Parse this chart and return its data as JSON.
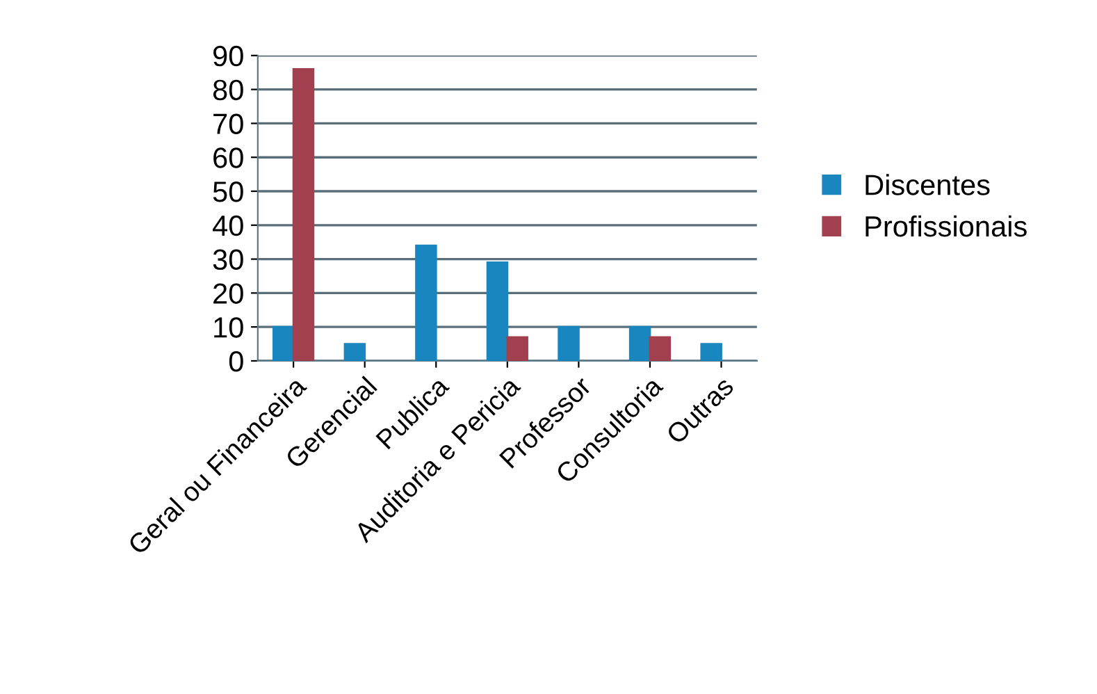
{
  "chart_data": {
    "type": "bar",
    "categories": [
      "Geral ou Financeira",
      "Gerencial",
      "Publica",
      "Auditoria e Pericia",
      "Professor",
      "Consultoria",
      "Outras"
    ],
    "series": [
      {
        "name": "Discentes",
        "color": "#1a86bf",
        "values": [
          10,
          5,
          34,
          29,
          10,
          10,
          5
        ]
      },
      {
        "name": "Profissionais",
        "color": "#a3404f",
        "values": [
          86,
          null,
          null,
          7,
          null,
          7,
          null
        ]
      }
    ],
    "ylim": [
      0,
      90
    ],
    "yticks": [
      0,
      10,
      20,
      30,
      40,
      50,
      60,
      70,
      80,
      90
    ],
    "grid": "y",
    "legend": "right"
  }
}
